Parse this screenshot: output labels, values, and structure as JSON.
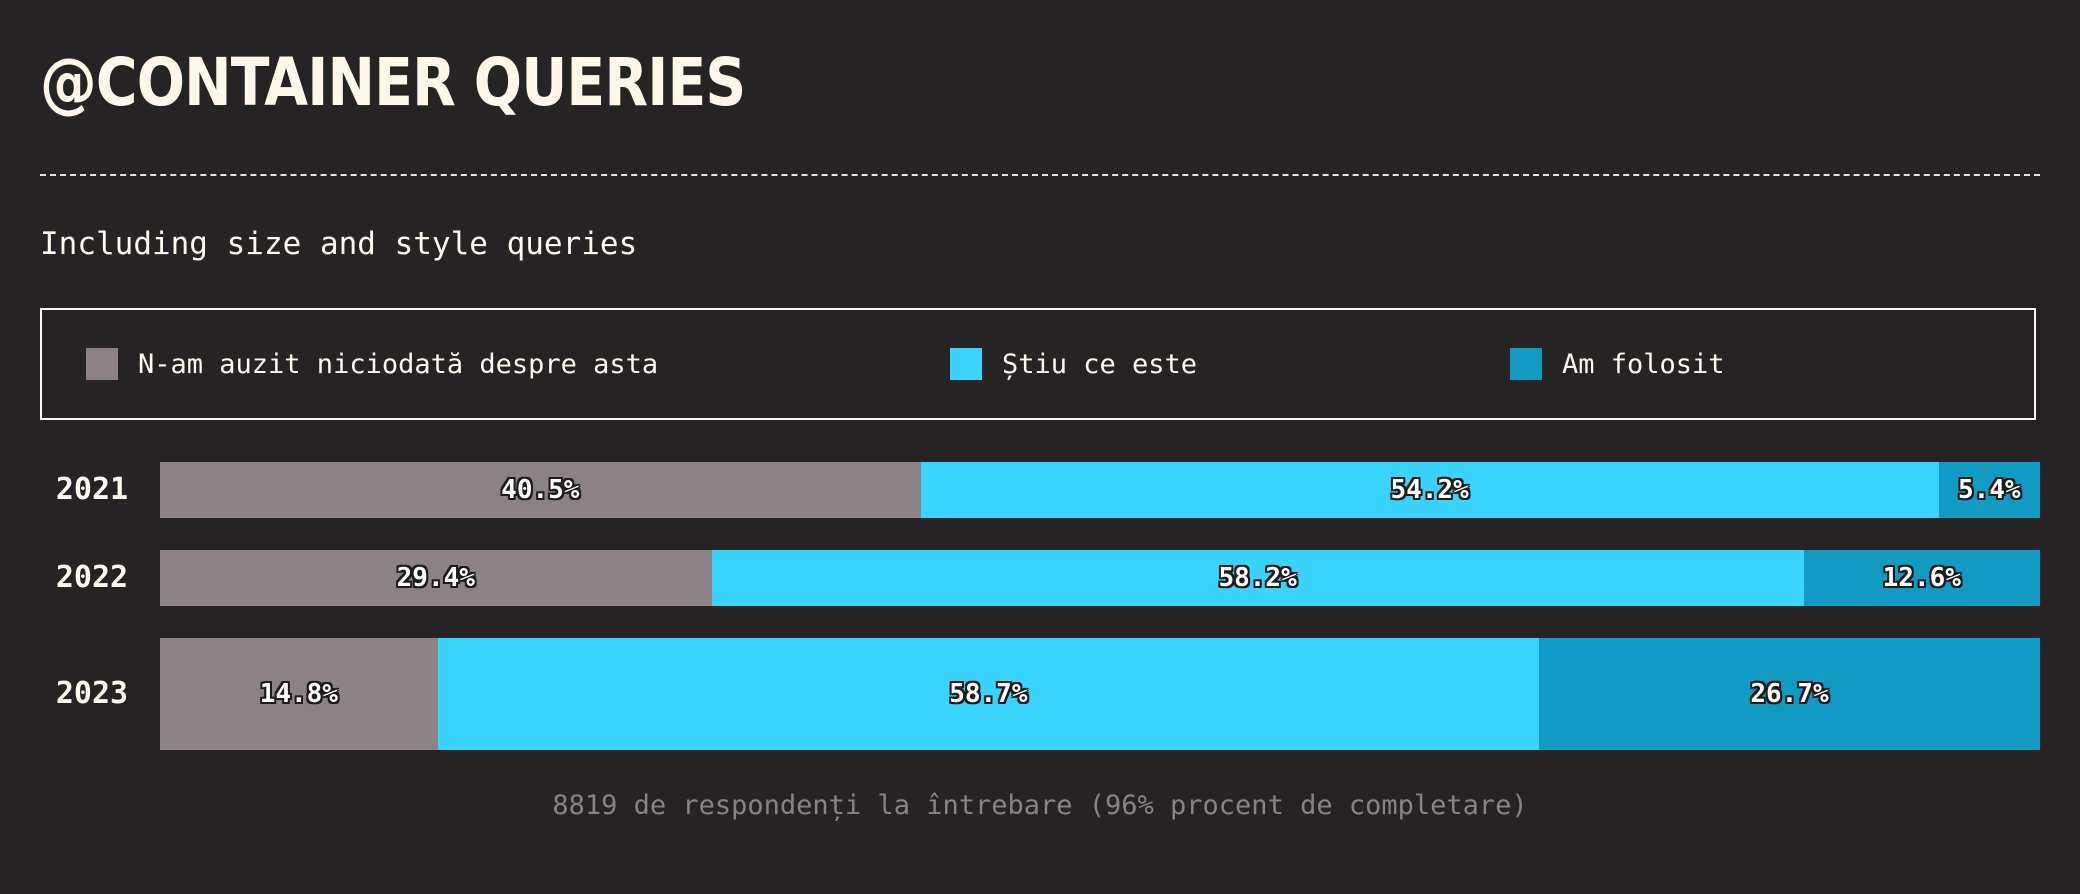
{
  "header": {
    "title": "@CONTAINER QUERIES",
    "subtitle": "Including size and style queries"
  },
  "chart_data": {
    "type": "bar",
    "orientation": "horizontal",
    "stacked": true,
    "normalized": true,
    "categories": [
      "2021",
      "2022",
      "2023"
    ],
    "series": [
      {
        "name": "N-am auzit niciodată despre asta",
        "color": "#8c8184",
        "values": [
          40.5,
          29.4,
          14.8
        ],
        "labels": [
          "40.5%",
          "29.4%",
          "14.8%"
        ]
      },
      {
        "name": "Știu ce este",
        "color": "#39d3fc",
        "values": [
          54.2,
          58.2,
          58.7
        ],
        "labels": [
          "54.2%",
          "58.2%",
          "58.7%"
        ]
      },
      {
        "name": "Am folosit",
        "color": "#119bc2",
        "values": [
          5.4,
          12.6,
          26.7
        ],
        "labels": [
          "5.4%",
          "12.6%",
          "26.7%"
        ]
      }
    ],
    "legend": {
      "position": "top"
    },
    "note": "8819 de respondenți la întrebare (96% procent de completare)"
  }
}
